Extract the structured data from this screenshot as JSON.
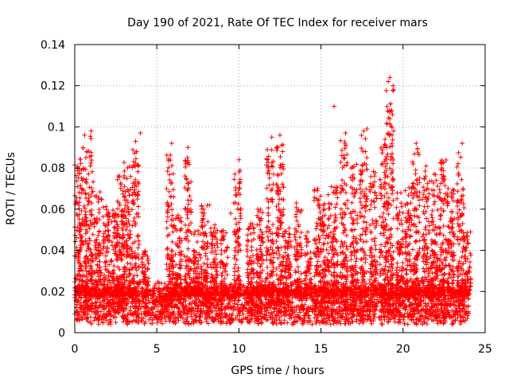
{
  "chart_data": {
    "type": "scatter",
    "title": "Day 190 of 2021, Rate Of TEC Index for receiver mars",
    "xlabel": "GPS time / hours",
    "ylabel": "ROTI / TECUs",
    "xlim": [
      0,
      25
    ],
    "ylim": [
      0,
      0.14
    ],
    "xticks": [
      0,
      5,
      10,
      15,
      20,
      25
    ],
    "yticks": [
      0,
      0.02,
      0.04,
      0.06,
      0.08,
      0.1,
      0.12,
      0.14
    ],
    "xtick_labels": [
      "0",
      "5",
      "10",
      "15",
      "20",
      "25"
    ],
    "ytick_labels": [
      "0",
      "0.02",
      "0.04",
      "0.06",
      "0.08",
      "0.1",
      "0.12",
      "0.14"
    ],
    "grid": true,
    "marker": "+",
    "color": "#ff0000",
    "x_range_of_data": [
      0,
      24
    ],
    "baseline_band": [
      0.004,
      0.022
    ],
    "notable_points": [
      {
        "x": 19.2,
        "y": 0.124
      },
      {
        "x": 19.1,
        "y": 0.122
      },
      {
        "x": 15.8,
        "y": 0.11
      },
      {
        "x": 19.3,
        "y": 0.108
      },
      {
        "x": 19.2,
        "y": 0.104
      },
      {
        "x": 17.8,
        "y": 0.099
      },
      {
        "x": 17.6,
        "y": 0.098
      },
      {
        "x": 1.0,
        "y": 0.098
      },
      {
        "x": 16.5,
        "y": 0.097
      },
      {
        "x": 4.0,
        "y": 0.097
      },
      {
        "x": 12.5,
        "y": 0.096
      },
      {
        "x": 0.6,
        "y": 0.096
      },
      {
        "x": 12.0,
        "y": 0.095
      },
      {
        "x": 18.9,
        "y": 0.094
      },
      {
        "x": 3.7,
        "y": 0.093
      },
      {
        "x": 20.8,
        "y": 0.092
      },
      {
        "x": 5.9,
        "y": 0.092
      },
      {
        "x": 23.6,
        "y": 0.092
      },
      {
        "x": 6.9,
        "y": 0.09
      },
      {
        "x": 10.0,
        "y": 0.084
      },
      {
        "x": 14.8,
        "y": 0.07
      },
      {
        "x": 13.5,
        "y": 0.063
      },
      {
        "x": 8.2,
        "y": 0.062
      },
      {
        "x": 9.5,
        "y": 0.058
      },
      {
        "x": 11.8,
        "y": 0.057
      }
    ],
    "series": [
      {
        "name": "ROTI",
        "clusters": [
          {
            "x": 0.1,
            "peak": 0.084
          },
          {
            "x": 0.5,
            "peak": 0.09
          },
          {
            "x": 0.9,
            "peak": 0.096
          },
          {
            "x": 1.4,
            "peak": 0.07
          },
          {
            "x": 1.9,
            "peak": 0.062
          },
          {
            "x": 2.4,
            "peak": 0.06
          },
          {
            "x": 2.8,
            "peak": 0.08
          },
          {
            "x": 3.2,
            "peak": 0.083
          },
          {
            "x": 3.7,
            "peak": 0.091
          },
          {
            "x": 4.3,
            "peak": 0.04
          },
          {
            "x": 5.8,
            "peak": 0.088
          },
          {
            "x": 6.3,
            "peak": 0.058
          },
          {
            "x": 6.9,
            "peak": 0.086
          },
          {
            "x": 7.4,
            "peak": 0.05
          },
          {
            "x": 7.9,
            "peak": 0.062
          },
          {
            "x": 8.5,
            "peak": 0.056
          },
          {
            "x": 9.1,
            "peak": 0.05
          },
          {
            "x": 9.9,
            "peak": 0.08
          },
          {
            "x": 10.7,
            "peak": 0.055
          },
          {
            "x": 11.3,
            "peak": 0.06
          },
          {
            "x": 11.9,
            "peak": 0.092
          },
          {
            "x": 12.5,
            "peak": 0.093
          },
          {
            "x": 13.0,
            "peak": 0.052
          },
          {
            "x": 13.6,
            "peak": 0.063
          },
          {
            "x": 14.2,
            "peak": 0.05
          },
          {
            "x": 14.8,
            "peak": 0.07
          },
          {
            "x": 15.3,
            "peak": 0.068
          },
          {
            "x": 15.8,
            "peak": 0.072
          },
          {
            "x": 16.4,
            "peak": 0.096
          },
          {
            "x": 17.0,
            "peak": 0.082
          },
          {
            "x": 17.6,
            "peak": 0.096
          },
          {
            "x": 18.2,
            "peak": 0.08
          },
          {
            "x": 18.8,
            "peak": 0.092
          },
          {
            "x": 19.2,
            "peak": 0.12
          },
          {
            "x": 19.8,
            "peak": 0.068
          },
          {
            "x": 20.3,
            "peak": 0.075
          },
          {
            "x": 20.8,
            "peak": 0.09
          },
          {
            "x": 21.4,
            "peak": 0.082
          },
          {
            "x": 21.9,
            "peak": 0.08
          },
          {
            "x": 22.4,
            "peak": 0.084
          },
          {
            "x": 22.9,
            "peak": 0.074
          },
          {
            "x": 23.5,
            "peak": 0.088
          },
          {
            "x": 23.9,
            "peak": 0.05
          }
        ]
      }
    ]
  }
}
